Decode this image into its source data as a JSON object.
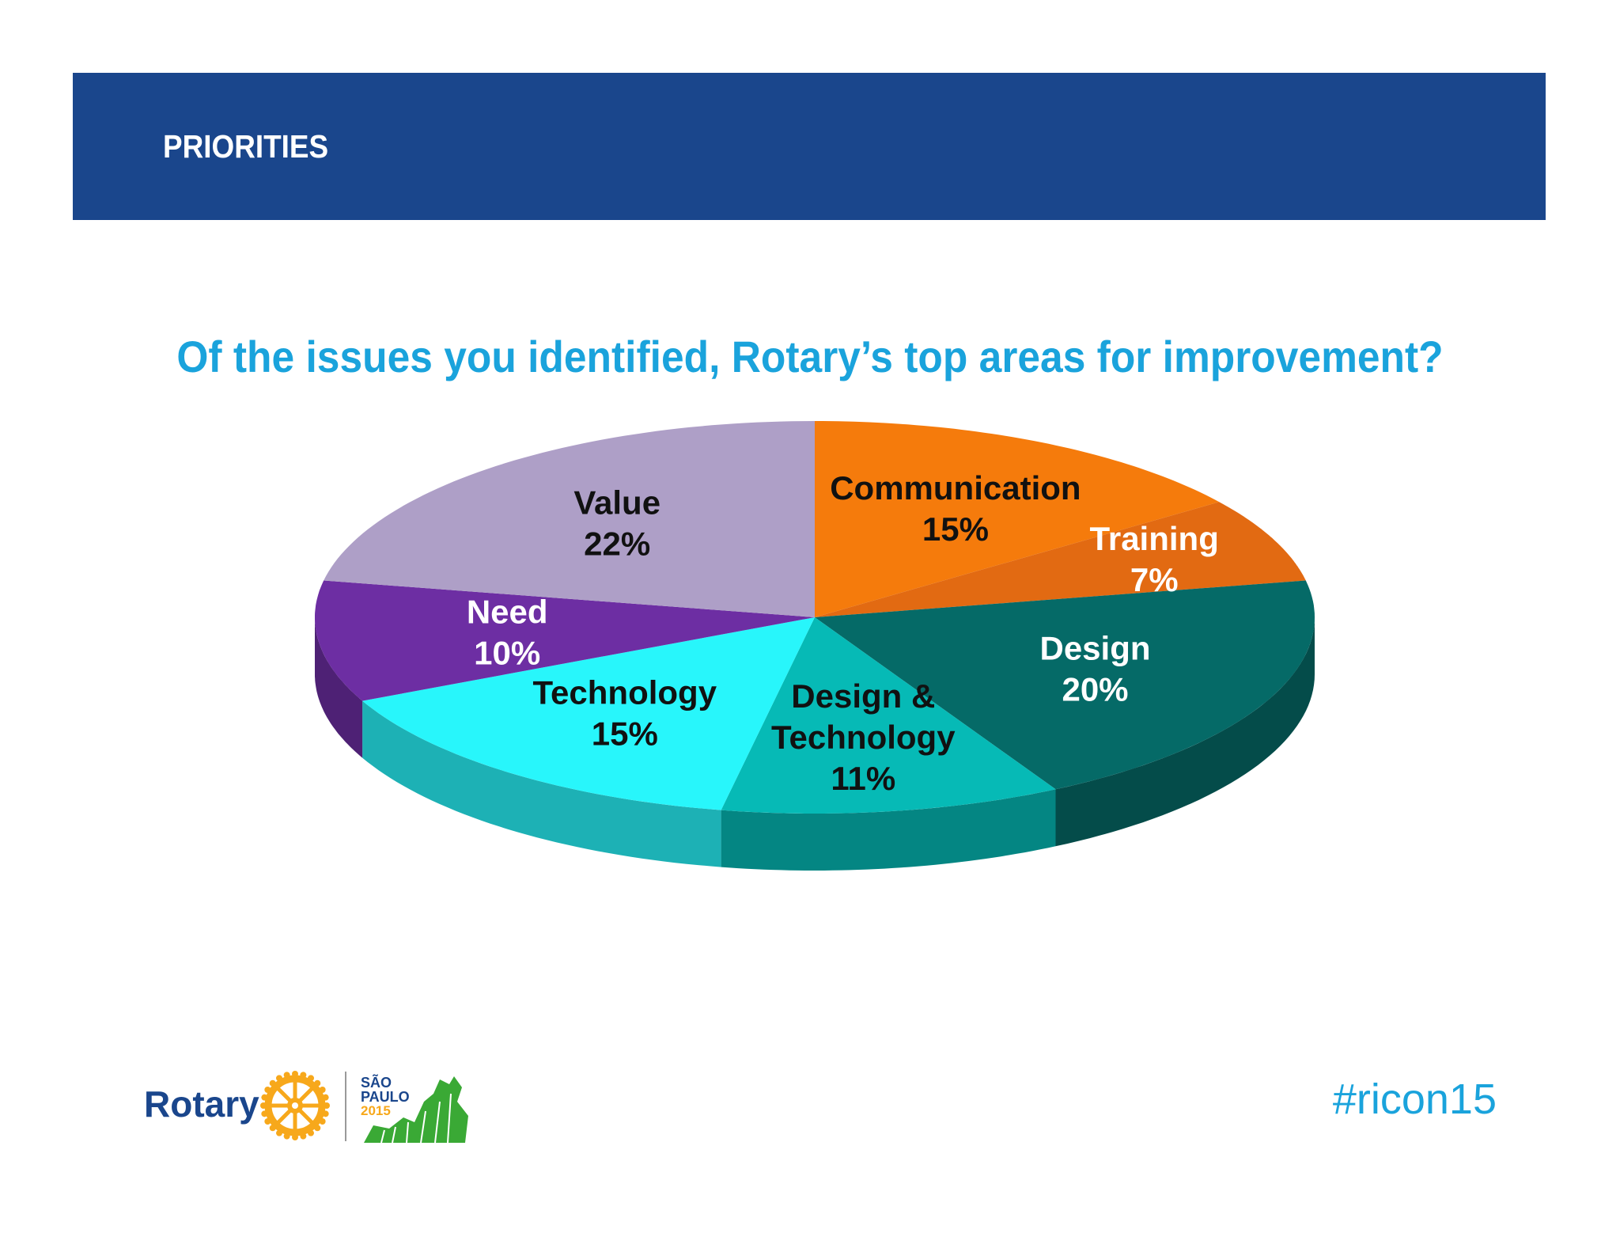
{
  "header": {
    "section_label": "PRIORITIES",
    "band_color": "#1a468c"
  },
  "chart_data": {
    "type": "pie",
    "title": "Of the issues you identified, Rotary’s top areas for improvement?",
    "three_d": true,
    "slices": [
      {
        "label": "Communication",
        "line2": "",
        "value_text": "15%",
        "value": 15,
        "color": "#f57b0c",
        "text_color": "#111111"
      },
      {
        "label": "Training",
        "line2": "",
        "value_text": "7%",
        "value": 7,
        "color": "#e26a12",
        "text_color": "#ffffff"
      },
      {
        "label": "Design",
        "line2": "",
        "value_text": "20%",
        "value": 20,
        "color": "#056a67",
        "text_color": "#ffffff"
      },
      {
        "label": "Design &",
        "line2": "Technology",
        "value_text": "11%",
        "value": 11,
        "color": "#06bab6",
        "text_color": "#111111"
      },
      {
        "label": "Technology",
        "line2": "",
        "value_text": "15%",
        "value": 15,
        "color": "#28f6fb",
        "text_color": "#111111"
      },
      {
        "label": "Need",
        "line2": "",
        "value_text": "10%",
        "value": 10,
        "color": "#6d2ea3",
        "text_color": "#ffffff"
      },
      {
        "label": "Value",
        "line2": "",
        "value_text": "22%",
        "value": 22,
        "color": "#ae9fc7",
        "text_color": "#111111"
      }
    ]
  },
  "footer": {
    "brand_name": "Rotary",
    "event_logo_text": [
      "SÃO",
      "PAULO",
      "2015"
    ],
    "hashtag": "#ricon15",
    "brand_color": "#1a468c",
    "accent_color": "#1aa3dc",
    "wheel_color": "#f7a81b",
    "event_green": "#3aa935"
  }
}
